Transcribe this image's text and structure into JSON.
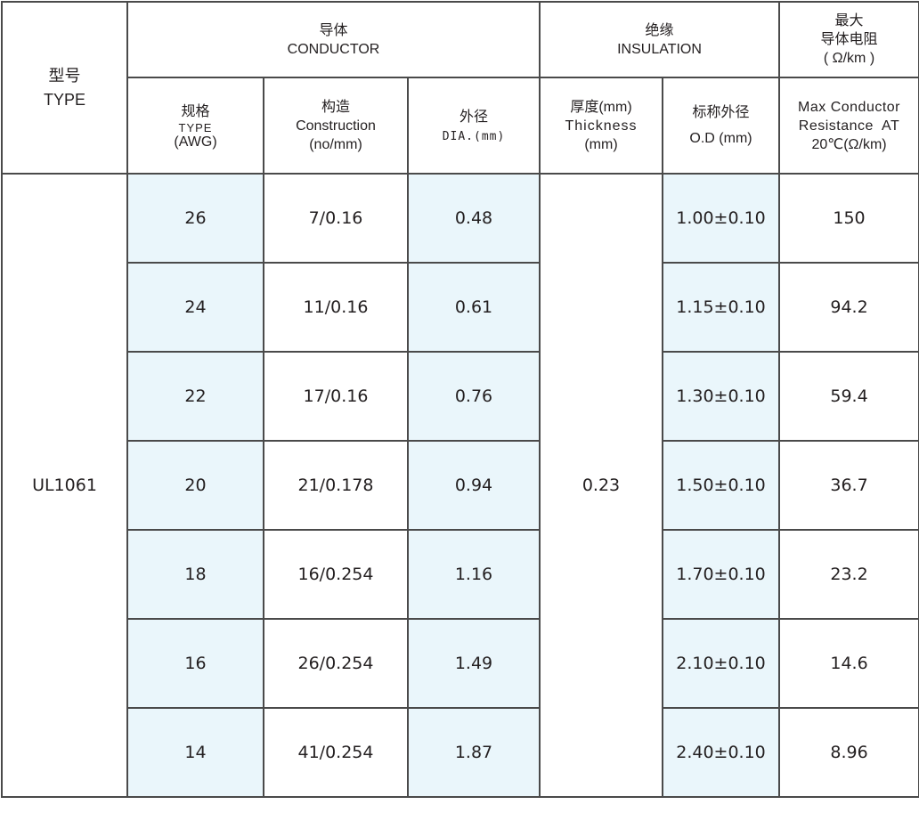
{
  "header": {
    "type_cn": "型号",
    "type_en": "TYPE",
    "conductor_cn": "导体",
    "conductor_en": "CONDUCTOR",
    "insulation_cn": "绝缘",
    "insulation_en": "INSULATION",
    "resistance_cn_1": "最大",
    "resistance_cn_2": "导体电阻",
    "resistance_unit": "( Ω/km )"
  },
  "subheader": {
    "awg_cn": "规格",
    "awg_en": "TYPE",
    "awg_unit": "(AWG)",
    "construction_cn": "构造",
    "construction_en": "Construction",
    "construction_unit": "(no/mm)",
    "dia_cn": "外径",
    "dia_en": "DIA.(mm)",
    "thickness_cn": "厚度(mm)",
    "thickness_en": "Thickness",
    "thickness_unit": "(mm)",
    "od_cn": "标称外径",
    "od_en": "O.D (mm)",
    "res_en_1": "Max Conductor",
    "res_en_2": "Resistance  AT",
    "res_en_3": "20℃(Ω/km)"
  },
  "type_value": "UL1061",
  "thickness_value": "0.23",
  "rows": [
    {
      "awg": "26",
      "construction": "7/0.16",
      "dia": "0.48",
      "od": "1.00±0.10",
      "resistance": "150"
    },
    {
      "awg": "24",
      "construction": "11/0.16",
      "dia": "0.61",
      "od": "1.15±0.10",
      "resistance": "94.2"
    },
    {
      "awg": "22",
      "construction": "17/0.16",
      "dia": "0.76",
      "od": "1.30±0.10",
      "resistance": "59.4"
    },
    {
      "awg": "20",
      "construction": "21/0.178",
      "dia": "0.94",
      "od": "1.50±0.10",
      "resistance": "36.7"
    },
    {
      "awg": "18",
      "construction": "16/0.254",
      "dia": "1.16",
      "od": "1.70±0.10",
      "resistance": "23.2"
    },
    {
      "awg": "16",
      "construction": "26/0.254",
      "dia": "1.49",
      "od": "2.10±0.10",
      "resistance": "14.6"
    },
    {
      "awg": "14",
      "construction": "41/0.254",
      "dia": "1.87",
      "od": "2.40±0.10",
      "resistance": "8.96"
    }
  ],
  "colors": {
    "highlight": "#eaf6fb",
    "border": "#4a4a4a",
    "text": "#231f20"
  }
}
